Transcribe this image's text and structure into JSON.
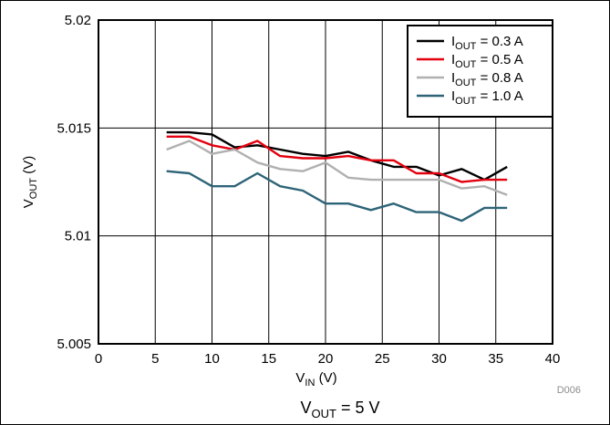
{
  "figure_id": "D006",
  "caption": {
    "main": "V",
    "sub": "OUT",
    "rest": " = 5 V"
  },
  "chart_data": {
    "type": "line",
    "xlabel": {
      "main": "V",
      "sub": "IN",
      "rest": " (V)"
    },
    "ylabel": {
      "main": "V",
      "sub": "OUT",
      "rest": " (V)"
    },
    "xlim": [
      0,
      40
    ],
    "ylim": [
      5.005,
      5.02
    ],
    "x_ticks": [
      0,
      5,
      10,
      15,
      20,
      25,
      30,
      35,
      40
    ],
    "y_ticks": [
      5.005,
      5.01,
      5.015,
      5.02
    ],
    "x_tick_labels": [
      "0",
      "5",
      "10",
      "15",
      "20",
      "25",
      "30",
      "35",
      "40"
    ],
    "y_tick_labels": [
      "5.005",
      "5.01",
      "5.015",
      "5.02"
    ],
    "grid": true,
    "legend_position": "top-right",
    "series": [
      {
        "name": "I_OUT = 0.3 A",
        "legend": {
          "main": "I",
          "sub": "OUT",
          "rest": " = 0.3 A"
        },
        "color": "#000000",
        "x": [
          6,
          8,
          10,
          12,
          14,
          16,
          18,
          20,
          22,
          24,
          26,
          28,
          30,
          32,
          34,
          36
        ],
        "y": [
          5.0148,
          5.0148,
          5.0147,
          5.0141,
          5.0142,
          5.014,
          5.0138,
          5.0137,
          5.0139,
          5.0135,
          5.0132,
          5.0132,
          5.0128,
          5.0131,
          5.0126,
          5.0132
        ]
      },
      {
        "name": "I_OUT = 0.5 A",
        "legend": {
          "main": "I",
          "sub": "OUT",
          "rest": " = 0.5 A"
        },
        "color": "#e3000f",
        "x": [
          6,
          8,
          10,
          12,
          14,
          16,
          18,
          20,
          22,
          24,
          26,
          28,
          30,
          32,
          34,
          36
        ],
        "y": [
          5.0146,
          5.0146,
          5.0142,
          5.014,
          5.0144,
          5.0137,
          5.0136,
          5.0136,
          5.0137,
          5.0135,
          5.0135,
          5.0129,
          5.0129,
          5.0125,
          5.0126,
          5.0126
        ]
      },
      {
        "name": "I_OUT = 0.8 A",
        "legend": {
          "main": "I",
          "sub": "OUT",
          "rest": " = 0.8 A"
        },
        "color": "#b0b0b0",
        "x": [
          6,
          8,
          10,
          12,
          14,
          16,
          18,
          20,
          22,
          24,
          26,
          28,
          30,
          32,
          34,
          36
        ],
        "y": [
          5.014,
          5.0144,
          5.0138,
          5.014,
          5.0134,
          5.0131,
          5.013,
          5.0134,
          5.0127,
          5.0126,
          5.0126,
          5.0126,
          5.0126,
          5.0122,
          5.0123,
          5.0119
        ]
      },
      {
        "name": "I_OUT = 1.0 A",
        "legend": {
          "main": "I",
          "sub": "OUT",
          "rest": " = 1.0 A"
        },
        "color": "#2e6478",
        "x": [
          6,
          8,
          10,
          12,
          14,
          16,
          18,
          20,
          22,
          24,
          26,
          28,
          30,
          32,
          34,
          36
        ],
        "y": [
          5.013,
          5.0129,
          5.0123,
          5.0123,
          5.0129,
          5.0123,
          5.0121,
          5.0115,
          5.0115,
          5.0112,
          5.0115,
          5.0111,
          5.0111,
          5.0107,
          5.0113,
          5.0113
        ]
      }
    ]
  }
}
